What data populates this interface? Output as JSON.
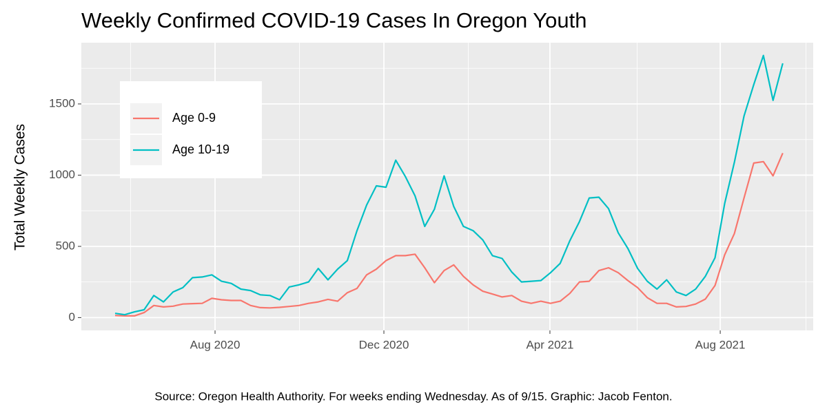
{
  "chart_data": {
    "type": "line",
    "title": "Weekly Confirmed COVID-19 Cases In Oregon Youth",
    "y_label": "Total Weekly Cases",
    "caption": "Source: Oregon Health Authority. For weeks ending Wednesday. As of 9/15. Graphic: Jacob Fenton.",
    "categories": [
      null,
      null,
      null,
      null,
      null,
      null,
      null,
      null,
      null,
      null,
      null,
      null,
      null,
      null,
      null,
      null,
      null,
      null,
      null,
      null,
      null,
      null,
      null,
      null,
      null,
      null,
      null,
      null,
      null,
      null,
      null,
      null,
      null,
      null,
      null,
      null,
      null,
      null,
      null,
      null,
      null,
      null,
      null,
      null,
      null,
      null,
      null,
      null,
      null,
      null,
      null,
      null,
      null,
      null,
      null,
      null,
      null,
      null,
      null,
      null,
      null,
      null,
      null,
      null,
      null,
      null,
      null,
      null,
      null,
      null
    ],
    "series": [
      {
        "name": "Age 0-9",
        "color": "#F8766D",
        "values": [
          15,
          12,
          12,
          35,
          85,
          75,
          80,
          95,
          98,
          100,
          135,
          125,
          120,
          120,
          85,
          70,
          68,
          72,
          78,
          85,
          100,
          110,
          128,
          115,
          175,
          205,
          300,
          340,
          400,
          435,
          435,
          445,
          350,
          245,
          330,
          370,
          290,
          230,
          185,
          165,
          145,
          155,
          115,
          100,
          115,
          100,
          115,
          170,
          250,
          255,
          330,
          350,
          315,
          260,
          210,
          140,
          100,
          100,
          75,
          78,
          95,
          130,
          225,
          440,
          590,
          840,
          1085,
          1095,
          995,
          1155
        ]
      },
      {
        "name": "Age 10-19",
        "color": "#00BFC4",
        "values": [
          30,
          20,
          40,
          55,
          155,
          110,
          180,
          210,
          280,
          285,
          300,
          255,
          240,
          200,
          190,
          160,
          155,
          125,
          215,
          230,
          250,
          345,
          265,
          340,
          400,
          610,
          790,
          925,
          915,
          1105,
          990,
          855,
          640,
          760,
          995,
          780,
          640,
          610,
          545,
          435,
          415,
          320,
          250,
          255,
          260,
          315,
          380,
          540,
          675,
          840,
          845,
          765,
          595,
          485,
          345,
          255,
          200,
          265,
          180,
          155,
          200,
          290,
          420,
          800,
          1090,
          1415,
          1635,
          1840,
          1525,
          1785
        ]
      }
    ],
    "xlim": [
      -3.49,
      72.15
    ],
    "xticks": [
      {
        "value": 10.33,
        "label": "Aug 2020"
      },
      {
        "value": 27.78,
        "label": "Dec 2020"
      },
      {
        "value": 44.94,
        "label": "Apr 2021"
      },
      {
        "value": 62.54,
        "label": "Aug 2021"
      }
    ],
    "ylim": [
      -90,
      1930
    ],
    "yticks": [
      0,
      500,
      1000,
      1500
    ],
    "grid": true,
    "legend": "top-left"
  }
}
